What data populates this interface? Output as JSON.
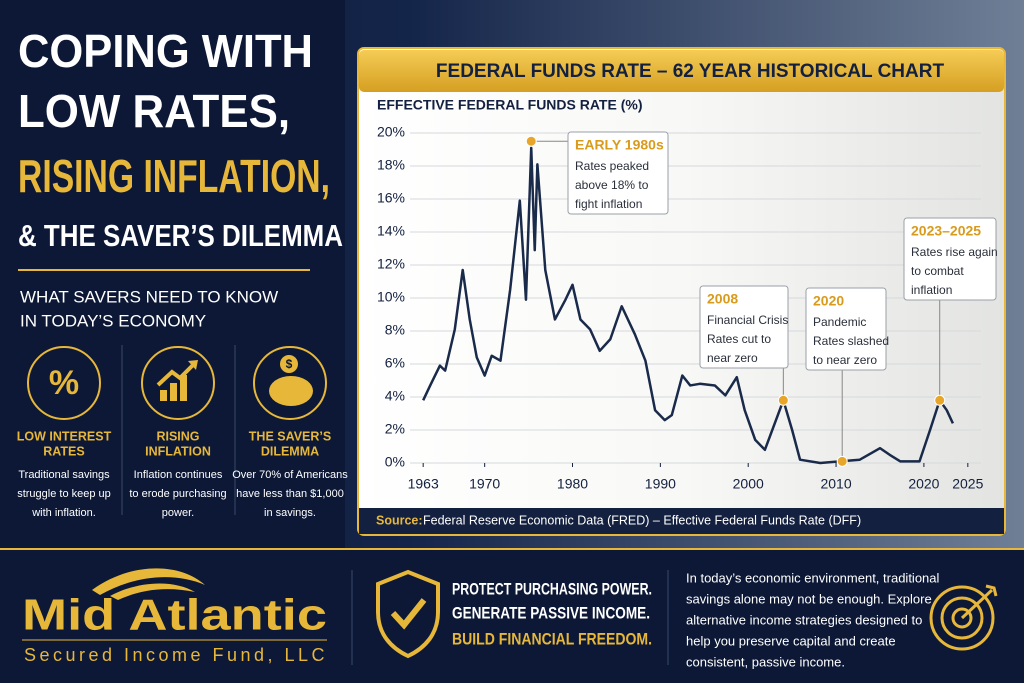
{
  "headline": {
    "lines": [
      "COPING WITH",
      "LOW RATES,",
      "RISING INFLATION,",
      "& THE SAVER’S DILEMMA"
    ]
  },
  "subheading": [
    "WHAT SAVERS NEED TO KNOW",
    "IN TODAY’S ECONOMY"
  ],
  "features": [
    {
      "icon": "%",
      "title": [
        "LOW INTEREST",
        "RATES"
      ],
      "text": [
        "Traditional savings",
        "struggle to keep up",
        "with inflation."
      ]
    },
    {
      "title": [
        "RISING",
        "INFLATION"
      ],
      "text": [
        "Inflation continues",
        "to erode purchasing",
        "power."
      ]
    },
    {
      "icon": "$",
      "title": [
        "THE SAVER’S",
        "DILEMMA"
      ],
      "text": [
        "Over 70% of Americans",
        "have less than $1,000",
        "in savings."
      ]
    }
  ],
  "chart_data": {
    "type": "line",
    "title": "FEDERAL FUNDS RATE – 62 YEAR HISTORICAL CHART",
    "y_label": "EFFECTIVE FEDERAL FUNDS RATE (%)",
    "x": [
      1963,
      1963.8,
      1964.9,
      1965.5,
      1966.6,
      1967.5,
      1968.3,
      1969.1,
      1970,
      1970.8,
      1971.8,
      1972.9,
      1974,
      1974.7,
      1975.3,
      1975.7,
      1976,
      1976.9,
      1978,
      1979.2,
      1980,
      1980.9,
      1982,
      1983.1,
      1984.3,
      1985.6,
      1987.1,
      1988.3,
      1989.4,
      1990.5,
      1991.3,
      1992.5,
      1993.4,
      1994.5,
      1996.2,
      1997.4,
      1998.7,
      1999.6,
      2000.8,
      2001.9,
      2004,
      2005,
      2005.9,
      2008.2,
      2010.4,
      2012.7,
      2015,
      2016.1,
      2017.3,
      2019.5,
      2020.7,
      2021.8,
      2022.6,
      2023.3
    ],
    "values": [
      3.8,
      4.7,
      5.9,
      5.6,
      8.1,
      11.7,
      8.7,
      6.4,
      5.3,
      6.5,
      6.2,
      10.5,
      15.9,
      9.9,
      19.1,
      12.9,
      18.1,
      11.7,
      8.7,
      9.9,
      10.8,
      8.7,
      8.1,
      6.8,
      7.5,
      9.5,
      7.8,
      6.2,
      3.2,
      2.6,
      2.9,
      5.3,
      4.7,
      4.8,
      4.7,
      4.1,
      5.2,
      3.2,
      1.4,
      0.8,
      3.8,
      2.0,
      0.2,
      0,
      0.1,
      0.2,
      0.9,
      0.5,
      0.1,
      0.1,
      2.0,
      3.8,
      3.2,
      2.4
    ],
    "color": "#1a2a4a",
    "xlim": [
      1961.5,
      2026.5
    ],
    "xticks": [
      1963,
      1970,
      1980,
      1990,
      2000,
      2010,
      2020,
      2025
    ],
    "ylim": [
      0,
      20
    ],
    "yticks": [
      {
        "value": 0,
        "label": "0%"
      },
      {
        "value": 2,
        "label": "2%"
      },
      {
        "value": 4,
        "label": "4%"
      },
      {
        "value": 6,
        "label": "6%"
      },
      {
        "value": 8,
        "label": "8%"
      },
      {
        "value": 10,
        "label": "10%"
      },
      {
        "value": 12,
        "label": "12%"
      },
      {
        "value": 14,
        "label": "14%"
      },
      {
        "value": 16,
        "label": "16%"
      },
      {
        "value": 18,
        "label": "18%"
      },
      {
        "value": 20,
        "label": "20%"
      }
    ],
    "grid": true,
    "annotations": [
      {
        "title": "EARLY 1980s",
        "lines": [
          "Rates peaked",
          "above 18% to",
          "fight inflation"
        ],
        "x": 1975.3,
        "y": 19.5
      },
      {
        "title": "2008",
        "lines": [
          "Financial Crisis",
          "Rates cut to",
          "near zero"
        ],
        "x": 2004,
        "y": 3.8
      },
      {
        "title": "2020",
        "lines": [
          "Pandemic",
          "Rates slashed",
          "to near zero"
        ],
        "x": 2010.7,
        "y": 0.1
      },
      {
        "title": "2023–2025",
        "lines": [
          "Rates rise again",
          "to combat",
          "inflation"
        ],
        "x": 2021.8,
        "y": 3.8
      }
    ],
    "source_label": "Source:",
    "source": "Federal Reserve Economic Data (FRED) – Effective Federal Funds Rate (DFF)"
  },
  "footer": {
    "logo": "Mid Atlantic",
    "logo_sub": "Secured Income Fund, LLC",
    "tagline": [
      "PROTECT PURCHASING POWER.",
      "GENERATE PASSIVE INCOME.",
      "BUILD FINANCIAL FREEDOM."
    ],
    "paragraph": [
      "In today’s economic environment, traditional",
      "savings alone may not be enough. Explore",
      "alternative income strategies designed to",
      "help you preserve capital and create",
      "consistent, passive income."
    ]
  }
}
